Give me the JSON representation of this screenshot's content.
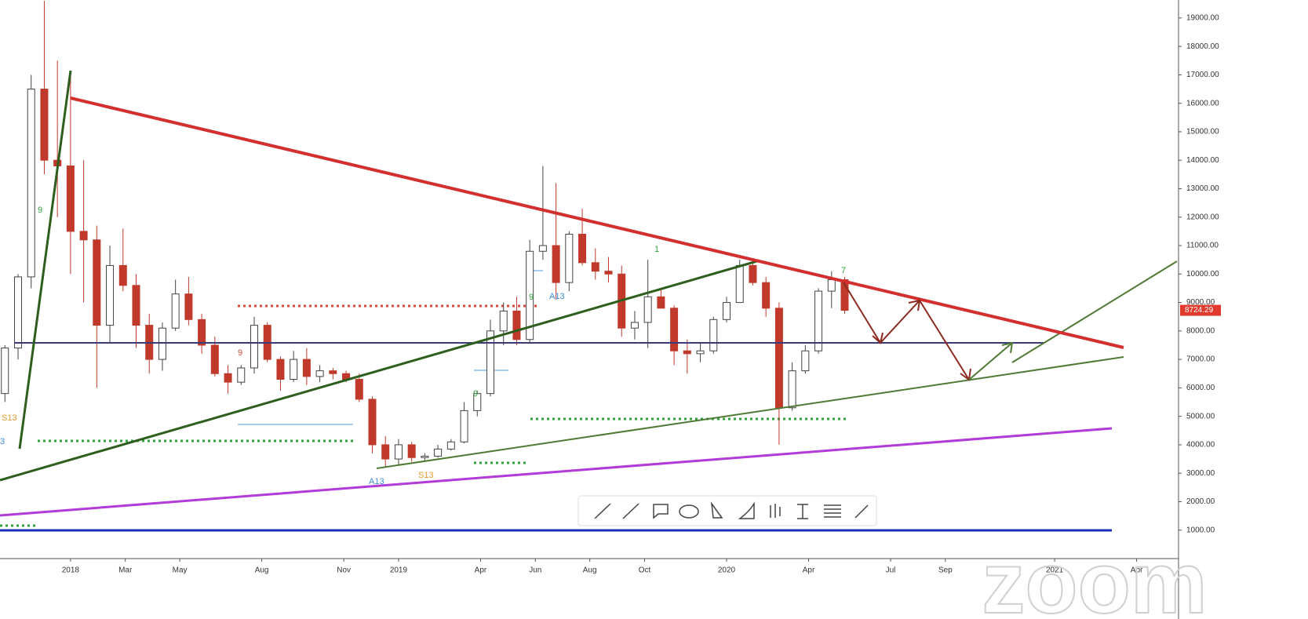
{
  "chart_data": {
    "type": "candlestick",
    "x": [
      2017.8,
      2017.84,
      2017.88,
      2017.92,
      2017.96,
      2018.0,
      2018.04,
      2018.08,
      2018.12,
      2018.16,
      2018.2,
      2018.24,
      2018.28,
      2018.32,
      2018.36,
      2018.4,
      2018.44,
      2018.48,
      2018.52,
      2018.56,
      2018.6,
      2018.64,
      2018.68,
      2018.72,
      2018.76,
      2018.8,
      2018.84,
      2018.88,
      2018.92,
      2018.96,
      2019.0,
      2019.04,
      2019.08,
      2019.12,
      2019.16,
      2019.2,
      2019.24,
      2019.28,
      2019.32,
      2019.36,
      2019.4,
      2019.44,
      2019.48,
      2019.52,
      2019.56,
      2019.6,
      2019.64,
      2019.68,
      2019.72,
      2019.76,
      2019.8,
      2019.84,
      2019.88,
      2019.92,
      2019.96,
      2020.0,
      2020.04,
      2020.08,
      2020.12,
      2020.16,
      2020.2,
      2020.24,
      2020.28,
      2020.32,
      2020.36
    ],
    "open": [
      5800,
      7400,
      9900,
      16500,
      14000,
      13800,
      11500,
      11200,
      8200,
      10300,
      9600,
      8200,
      7000,
      8100,
      9300,
      8400,
      7500,
      6500,
      6200,
      6700,
      8200,
      7000,
      6300,
      7000,
      6400,
      6600,
      6500,
      6300,
      5600,
      4000,
      3500,
      4000,
      3550,
      3600,
      3850,
      4100,
      5200,
      5800,
      8000,
      8700,
      7700,
      10800,
      11000,
      9700,
      11400,
      10400,
      10100,
      10000,
      8100,
      8300,
      9200,
      8800,
      7300,
      7200,
      7300,
      8400,
      9000,
      10300,
      9700,
      8800,
      5300,
      6600,
      7300,
      9400,
      9800
    ],
    "high": [
      7500,
      10000,
      17000,
      19600,
      17500,
      17000,
      14000,
      11700,
      11000,
      11600,
      10000,
      8600,
      8300,
      9800,
      9900,
      8600,
      7800,
      6800,
      6800,
      8500,
      8300,
      7100,
      7300,
      7400,
      6800,
      6700,
      6600,
      6500,
      5700,
      4300,
      4200,
      4100,
      3700,
      4000,
      4200,
      5500,
      5900,
      8400,
      9000,
      9200,
      11200,
      13800,
      13200,
      11500,
      12300,
      10900,
      10600,
      10300,
      8700,
      10500,
      9500,
      8900,
      7700,
      7600,
      8500,
      9200,
      10500,
      10500,
      9900,
      9000,
      6900,
      7500,
      9500,
      10100,
      9900
    ],
    "low": [
      5500,
      7000,
      9500,
      13500,
      12000,
      10000,
      9000,
      6000,
      7600,
      9400,
      7400,
      6500,
      6600,
      8000,
      8200,
      7200,
      6400,
      5800,
      6100,
      6500,
      6900,
      5900,
      6200,
      6100,
      6200,
      6300,
      6200,
      5500,
      3700,
      3200,
      3300,
      3400,
      3400,
      3550,
      3800,
      4050,
      5000,
      5700,
      7500,
      7500,
      7600,
      10500,
      9100,
      9400,
      10300,
      9800,
      9700,
      7800,
      7700,
      7400,
      8800,
      6800,
      6500,
      6900,
      7200,
      8300,
      9000,
      9600,
      8500,
      4000,
      5200,
      6500,
      7200,
      8800,
      8600
    ],
    "close": [
      7400,
      9900,
      16500,
      14000,
      13800,
      11500,
      11200,
      8200,
      10300,
      9600,
      8200,
      7000,
      8100,
      9300,
      8400,
      7500,
      6500,
      6200,
      6700,
      8200,
      7000,
      6300,
      7000,
      6400,
      6600,
      6500,
      6300,
      5600,
      4000,
      3500,
      4000,
      3550,
      3600,
      3850,
      4100,
      5200,
      5800,
      8000,
      8700,
      7700,
      10800,
      11000,
      9700,
      11400,
      10400,
      10100,
      10000,
      8100,
      8300,
      9200,
      8800,
      7300,
      7200,
      7300,
      8400,
      9000,
      10300,
      9700,
      8800,
      5300,
      6600,
      7300,
      9400,
      9800,
      8724.29
    ],
    "up_color": "#ffffff",
    "down_color": "#c0392b",
    "xlim": [
      2017.785,
      2021.373
    ],
    "ylim": [
      0,
      19630
    ],
    "xticks": [
      {
        "value": 2018.0,
        "label": "2018"
      },
      {
        "value": 2018.167,
        "label": "Mar"
      },
      {
        "value": 2018.333,
        "label": "May"
      },
      {
        "value": 2018.583,
        "label": "Aug"
      },
      {
        "value": 2018.833,
        "label": "Nov"
      },
      {
        "value": 2019.0,
        "label": "2019"
      },
      {
        "value": 2019.25,
        "label": "Apr"
      },
      {
        "value": 2019.417,
        "label": "Jun"
      },
      {
        "value": 2019.583,
        "label": "Aug"
      },
      {
        "value": 2019.75,
        "label": "Oct"
      },
      {
        "value": 2020.0,
        "label": "2020"
      },
      {
        "value": 2020.25,
        "label": "Apr"
      },
      {
        "value": 2020.5,
        "label": "Jul"
      },
      {
        "value": 2020.667,
        "label": "Sep"
      },
      {
        "value": 2021.0,
        "label": "2021"
      },
      {
        "value": 2021.25,
        "label": "Apr"
      }
    ],
    "yticks": [
      {
        "value": 1000,
        "label": "1000.00"
      },
      {
        "value": 2000,
        "label": "2000.00"
      },
      {
        "value": 3000,
        "label": "3000.00"
      },
      {
        "value": 4000,
        "label": "4000.00"
      },
      {
        "value": 5000,
        "label": "5000.00"
      },
      {
        "value": 6000,
        "label": "6000.00"
      },
      {
        "value": 7000,
        "label": "7000.00"
      },
      {
        "value": 8000,
        "label": "8000.00"
      },
      {
        "value": 9000,
        "label": "9000.00"
      },
      {
        "value": 10000,
        "label": "10000.00"
      },
      {
        "value": 11000,
        "label": "11000.00"
      },
      {
        "value": 12000,
        "label": "12000.00"
      },
      {
        "value": 13000,
        "label": "13000.00"
      },
      {
        "value": 14000,
        "label": "14000.00"
      },
      {
        "value": 15000,
        "label": "15000.00"
      },
      {
        "value": 16000,
        "label": "16000.00"
      },
      {
        "value": 17000,
        "label": "17000.00"
      },
      {
        "value": 18000,
        "label": "18000.00"
      },
      {
        "value": 19000,
        "label": "19000.00"
      }
    ],
    "last_price": 8724.29,
    "annotations": [
      "S13",
      "9",
      "9",
      "A13",
      "S13",
      "9",
      "9",
      "A13",
      "1",
      "7",
      "3"
    ],
    "watermark": "zoom"
  }
}
